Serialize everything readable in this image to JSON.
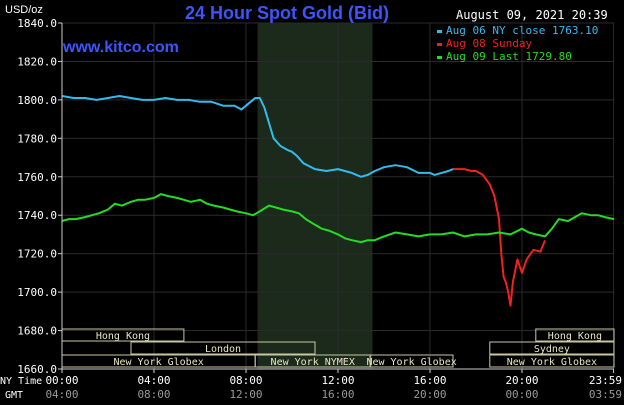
{
  "chart_data": {
    "type": "line",
    "title": "24 Hour Spot Gold (Bid)",
    "watermark": "www.kitco.com",
    "unit_label": "USD/oz",
    "datetime": "August 09, 2021 20:39",
    "ylim": [
      1660,
      1840
    ],
    "yticks": [
      "1840.0",
      "1820.0",
      "1800.0",
      "1780.0",
      "1760.0",
      "1740.0",
      "1720.0",
      "1700.0",
      "1680.0",
      "1660.0"
    ],
    "ytick_values": [
      1840,
      1820,
      1800,
      1780,
      1760,
      1740,
      1720,
      1700,
      1680,
      1660
    ],
    "xlim": [
      0,
      24
    ],
    "row_label_ny": "NY Time",
    "row_label_gmt": "GMT",
    "xticks_ny": [
      "00:00",
      "04:00",
      "08:00",
      "12:00",
      "16:00",
      "20:00",
      "23:59"
    ],
    "xticks_gmt": [
      "04:00",
      "08:00",
      "12:00",
      "16:00",
      "20:00",
      "00:00",
      "03:59"
    ],
    "xtick_hours": [
      0,
      4,
      8,
      12,
      16,
      20,
      23.98
    ],
    "shaded_hours": [
      8.5,
      13.5
    ],
    "legend": [
      {
        "label": "Aug 06 NY close 1763.10",
        "color": "#33bbee"
      },
      {
        "label": "Aug 08 Sunday",
        "color": "#ee2222"
      },
      {
        "label": "Aug 09 Last 1729.80",
        "color": "#22dd22"
      }
    ],
    "sessions": [
      {
        "label": "Hong Kong",
        "start": 0,
        "end": 5.3,
        "row": 0
      },
      {
        "label": "Hong Kong",
        "start": 20.6,
        "end": 24,
        "row": 0
      },
      {
        "label": "London",
        "start": 3,
        "end": 11,
        "row": 1
      },
      {
        "label": "Sydney",
        "start": 18.6,
        "end": 24,
        "row": 1
      },
      {
        "label": "New York Globex",
        "start": 0,
        "end": 8.4,
        "row": 2
      },
      {
        "label": "New York NYMEX",
        "start": 8.4,
        "end": 13.4,
        "row": 2
      },
      {
        "label": "New York Globex",
        "start": 13.4,
        "end": 17,
        "row": 2
      },
      {
        "label": "New York Globex",
        "start": 18.6,
        "end": 24,
        "row": 2
      }
    ],
    "series": [
      {
        "name": "Aug 06 NY close 1763.10",
        "color": "#33bbee",
        "x": [
          0,
          0.5,
          1,
          1.5,
          2,
          2.5,
          3,
          3.5,
          4,
          4.5,
          5,
          5.5,
          6,
          6.5,
          7,
          7.5,
          7.8,
          8,
          8.2,
          8.4,
          8.6,
          8.8,
          9,
          9.2,
          9.5,
          9.8,
          10,
          10.2,
          10.5,
          11,
          11.5,
          12,
          12.3,
          12.6,
          13,
          13.3,
          13.6,
          14,
          14.5,
          15,
          15.5,
          16,
          16.2,
          16.5,
          16.8,
          17
        ],
        "values": [
          1802,
          1801,
          1801,
          1800,
          1801,
          1802,
          1801,
          1800,
          1800,
          1801,
          1800,
          1800,
          1799,
          1799,
          1797,
          1797,
          1795,
          1797,
          1799,
          1801,
          1801,
          1796,
          1788,
          1780,
          1776,
          1774,
          1773,
          1771,
          1767,
          1764,
          1763,
          1764,
          1763,
          1762,
          1760,
          1761,
          1763,
          1765,
          1766,
          1765,
          1762,
          1762,
          1761,
          1762,
          1763,
          1764
        ]
      },
      {
        "name": "Aug 08 Sunday",
        "color": "#ee2222",
        "x": [
          17,
          17.5,
          17.8,
          18,
          18.3,
          18.6,
          18.8,
          19,
          19.1,
          19.2,
          19.3,
          19.4,
          19.5,
          19.6,
          19.8,
          20,
          20.2,
          20.5,
          20.8,
          21
        ],
        "values": [
          1764,
          1764,
          1763,
          1763,
          1761,
          1756,
          1750,
          1738,
          1720,
          1708,
          1705,
          1700,
          1693,
          1705,
          1717,
          1710,
          1717,
          1722,
          1721,
          1727
        ]
      },
      {
        "name": "Aug 09 Last 1729.80",
        "color": "#22dd22",
        "x": [
          0,
          0.3,
          0.6,
          1,
          1.3,
          1.6,
          2,
          2.3,
          2.6,
          3,
          3.3,
          3.6,
          4,
          4.3,
          4.6,
          5,
          5.3,
          5.6,
          6,
          6.3,
          6.6,
          7,
          7.3,
          7.6,
          8,
          8.3,
          8.6,
          9,
          9.3,
          9.6,
          10,
          10.3,
          10.6,
          11,
          11.3,
          11.6,
          12,
          12.3,
          12.6,
          13,
          13.3,
          13.6,
          14,
          14.5,
          15,
          15.5,
          16,
          16.5,
          17,
          17.5,
          18,
          18.5,
          19,
          19.5,
          20,
          20.3,
          20.6,
          21,
          21.3,
          21.6,
          22,
          22.3,
          22.6,
          23,
          23.3,
          23.6,
          24
        ],
        "values": [
          1737,
          1738,
          1738,
          1739,
          1740,
          1741,
          1743,
          1746,
          1745,
          1747,
          1748,
          1748,
          1749,
          1751,
          1750,
          1749,
          1748,
          1747,
          1748,
          1746,
          1745,
          1744,
          1743,
          1742,
          1741,
          1740,
          1742,
          1745,
          1744,
          1743,
          1742,
          1741,
          1738,
          1735,
          1733,
          1732,
          1730,
          1728,
          1727,
          1726,
          1727,
          1727,
          1729,
          1731,
          1730,
          1729,
          1730,
          1730,
          1731,
          1729,
          1730,
          1730,
          1731,
          1730,
          1733,
          1731,
          1730,
          1729,
          1733,
          1738,
          1737,
          1739,
          1741,
          1740,
          1740,
          1739,
          1738
        ]
      }
    ]
  }
}
